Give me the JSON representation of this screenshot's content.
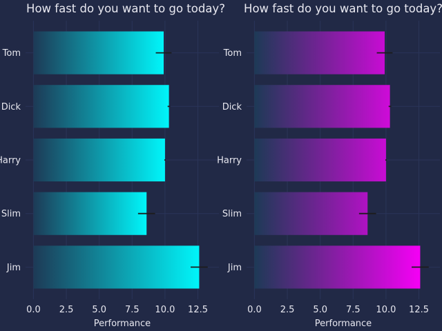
{
  "chart_data": [
    {
      "type": "bar",
      "orientation": "horizontal",
      "title": "How fast do you want to go today?",
      "categories": [
        "Tom",
        "Dick",
        "Harry",
        "Slim",
        "Jim"
      ],
      "values": [
        9.9,
        10.3,
        10.0,
        8.6,
        12.6
      ],
      "errors": [
        0.6,
        0.1,
        0.05,
        0.65,
        0.65
      ],
      "xlabel": "Performance",
      "ylabel": "",
      "xlim": [
        -0.6,
        14.1
      ],
      "xticks": [
        "0.0",
        "2.5",
        "5.0",
        "7.5",
        "10.0",
        "12.5"
      ],
      "grid": true,
      "gradient": {
        "start": "#1d3a56",
        "end": "#00f5fa",
        "normalize": "per-bar"
      },
      "colors": {
        "background": "#212946",
        "grid": "#2a3459",
        "text": "#e8e8f0",
        "errorbar": "#1c1c1c"
      }
    },
    {
      "type": "bar",
      "orientation": "horizontal",
      "title": "How fast do you want to go today?",
      "categories": [
        "Tom",
        "Dick",
        "Harry",
        "Slim",
        "Jim"
      ],
      "values": [
        9.9,
        10.3,
        10.0,
        8.6,
        12.6
      ],
      "errors": [
        0.6,
        0.1,
        0.05,
        0.65,
        0.65
      ],
      "xlabel": "Performance",
      "ylabel": "",
      "xlim": [
        -0.6,
        14.1
      ],
      "xticks": [
        "0.0",
        "2.5",
        "5.0",
        "7.5",
        "10.0",
        "12.5"
      ],
      "grid": true,
      "gradient": {
        "start": "#1d3a56",
        "end": "#f500f5",
        "normalize": "global"
      },
      "colors": {
        "background": "#212946",
        "grid": "#2a3459",
        "text": "#e8e8f0",
        "errorbar": "#1c1c1c"
      }
    }
  ]
}
